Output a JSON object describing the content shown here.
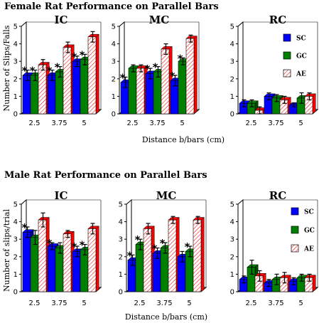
{
  "chart_data": [
    {
      "type": "bar",
      "figure_title": "Female Rat Performance on Parallel Bars",
      "xlabel": "Distance b/bars (cm)",
      "ylabel": "Number of Slips/Falls",
      "legend": {
        "placement": "right",
        "entries": [
          "SC",
          "GC",
          "AE"
        ]
      },
      "colors": {
        "SC": "#0000ff",
        "GC": "#008000",
        "AE": "#ffffff",
        "AE_stripe": "#ff0000",
        "back": "#ff0000"
      },
      "panels": [
        {
          "title": "IC",
          "ylim": [
            0,
            5
          ],
          "yticks": [
            "0",
            "1",
            "2",
            "3",
            "4",
            "5"
          ],
          "categories": [
            "2.5",
            "3.75",
            "5"
          ],
          "series": [
            {
              "name": "SC",
              "values": [
                2.2,
                2.2,
                3.0
              ],
              "errors": [
                0.3,
                0.3,
                0.3
              ]
            },
            {
              "name": "GC",
              "values": [
                2.2,
                2.4,
                3.1
              ],
              "errors": [
                0.3,
                0.3,
                0.3
              ]
            },
            {
              "name": "AE",
              "values": [
                2.8,
                3.8,
                4.4
              ],
              "errors": [
                0.3,
                0.3,
                0.3
              ]
            }
          ],
          "annotations": [
            {
              "category": 0,
              "series": 0,
              "text": "*"
            },
            {
              "category": 0,
              "series": 1,
              "text": "*"
            },
            {
              "category": 1,
              "series": 0,
              "text": "*"
            },
            {
              "category": 1,
              "series": 1,
              "text": "*"
            },
            {
              "category": 2,
              "series": 0,
              "text": "*"
            },
            {
              "category": 2,
              "series": 1,
              "text": "*"
            }
          ]
        },
        {
          "title": "MC",
          "ylim": [
            0,
            5
          ],
          "yticks": [
            "0",
            "1",
            "2",
            "3",
            "4",
            "5"
          ],
          "categories": [
            "2.5",
            "3.75",
            "5"
          ],
          "series": [
            {
              "name": "SC",
              "values": [
                1.8,
                2.3,
                1.9
              ],
              "errors": [
                0.3,
                0.3,
                0.3
              ]
            },
            {
              "name": "GC",
              "values": [
                2.6,
                2.4,
                3.0
              ],
              "errors": [
                0.2,
                0.3,
                0.2
              ]
            },
            {
              "name": "AE",
              "values": [
                2.6,
                3.7,
                4.3
              ],
              "errors": [
                0.2,
                0.3,
                0.2
              ]
            }
          ],
          "annotations": [
            {
              "category": 0,
              "series": 0,
              "text": "*"
            },
            {
              "category": 1,
              "series": 0,
              "text": "*"
            },
            {
              "category": 1,
              "series": 1,
              "text": "*"
            },
            {
              "category": 2,
              "series": 0,
              "text": "*"
            },
            {
              "category": 2,
              "series": 1,
              "text": "*"
            }
          ]
        },
        {
          "title": "RC",
          "ylim": [
            0,
            5
          ],
          "yticks": [
            "0",
            "1",
            "2",
            "3",
            "4",
            "5"
          ],
          "categories": [
            "2.5",
            "3.75",
            "5"
          ],
          "series": [
            {
              "name": "SC",
              "values": [
                0.6,
                1.0,
                0.5
              ],
              "errors": [
                0.2,
                0.2,
                0.1
              ]
            },
            {
              "name": "GC",
              "values": [
                0.6,
                0.9,
                0.9
              ],
              "errors": [
                0.2,
                0.2,
                0.3
              ]
            },
            {
              "name": "AE",
              "values": [
                0.2,
                0.8,
                1.0
              ],
              "errors": [
                0.2,
                0.2,
                0.2
              ]
            }
          ],
          "annotations": []
        }
      ]
    },
    {
      "type": "bar",
      "figure_title": "Male Rat Performance on Parallel Bars",
      "xlabel": "Distance b/bars (cm)",
      "ylabel": "Number of slips/trial",
      "legend": {
        "placement": "right",
        "entries": [
          "SC",
          "GC",
          "AE"
        ]
      },
      "colors": {
        "SC": "#0000ff",
        "GC": "#008000",
        "AE": "#ffffff",
        "AE_stripe": "#ff0000",
        "back": "#ff0000"
      },
      "panels": [
        {
          "title": "IC",
          "ylim": [
            0,
            5
          ],
          "yticks": [
            "0",
            "1",
            "2",
            "3",
            "4",
            "5"
          ],
          "categories": [
            "2.5",
            "3.75",
            "5"
          ],
          "series": [
            {
              "name": "SC",
              "values": [
                3.4,
                2.6,
                2.3
              ],
              "errors": [
                0.3,
                0.2,
                0.3
              ]
            },
            {
              "name": "GC",
              "values": [
                3.1,
                2.5,
                2.4
              ],
              "errors": [
                0.4,
                0.3,
                0.3
              ]
            },
            {
              "name": "AE",
              "values": [
                4.1,
                3.3,
                3.6
              ],
              "errors": [
                0.4,
                0.2,
                0.3
              ]
            }
          ],
          "annotations": [
            {
              "category": 0,
              "series": 0,
              "text": "*"
            },
            {
              "category": 1,
              "series": 0,
              "text": "*"
            },
            {
              "category": 2,
              "series": 0,
              "text": "*"
            },
            {
              "category": 2,
              "series": 1,
              "text": "*"
            }
          ]
        },
        {
          "title": "MC",
          "ylim": [
            0,
            5
          ],
          "yticks": [
            "0",
            "1",
            "2",
            "3",
            "4",
            "5"
          ],
          "categories": [
            "2.5",
            "3.75",
            "5"
          ],
          "series": [
            {
              "name": "SC",
              "values": [
                1.8,
                2.2,
                2.0
              ],
              "errors": [
                0.3,
                0.3,
                0.3
              ]
            },
            {
              "name": "GC",
              "values": [
                2.7,
                2.5,
                2.3
              ],
              "errors": [
                0.3,
                0.3,
                0.3
              ]
            },
            {
              "name": "AE",
              "values": [
                3.6,
                4.1,
                4.1
              ],
              "errors": [
                0.3,
                0.2,
                0.2
              ]
            }
          ],
          "annotations": [
            {
              "category": 0,
              "series": 0,
              "text": "*"
            },
            {
              "category": 0,
              "series": 1,
              "text": "*"
            },
            {
              "category": 1,
              "series": 0,
              "text": "*"
            },
            {
              "category": 1,
              "series": 1,
              "text": "*"
            },
            {
              "category": 2,
              "series": 1,
              "text": "*"
            }
          ]
        },
        {
          "title": "RC",
          "ylim": [
            0,
            5
          ],
          "yticks": [
            "0",
            "1",
            "2",
            "3",
            "4",
            "5"
          ],
          "categories": [
            "2.5",
            "3.75",
            "5"
          ],
          "series": [
            {
              "name": "SC",
              "values": [
                0.7,
                0.5,
                0.6
              ],
              "errors": [
                0.2,
                0.2,
                0.2
              ]
            },
            {
              "name": "GC",
              "values": [
                1.4,
                0.7,
                0.8
              ],
              "errors": [
                0.4,
                0.3,
                0.2
              ]
            },
            {
              "name": "AE",
              "values": [
                0.9,
                0.8,
                0.8
              ],
              "errors": [
                0.3,
                0.3,
                0.2
              ]
            }
          ],
          "annotations": []
        }
      ]
    }
  ]
}
